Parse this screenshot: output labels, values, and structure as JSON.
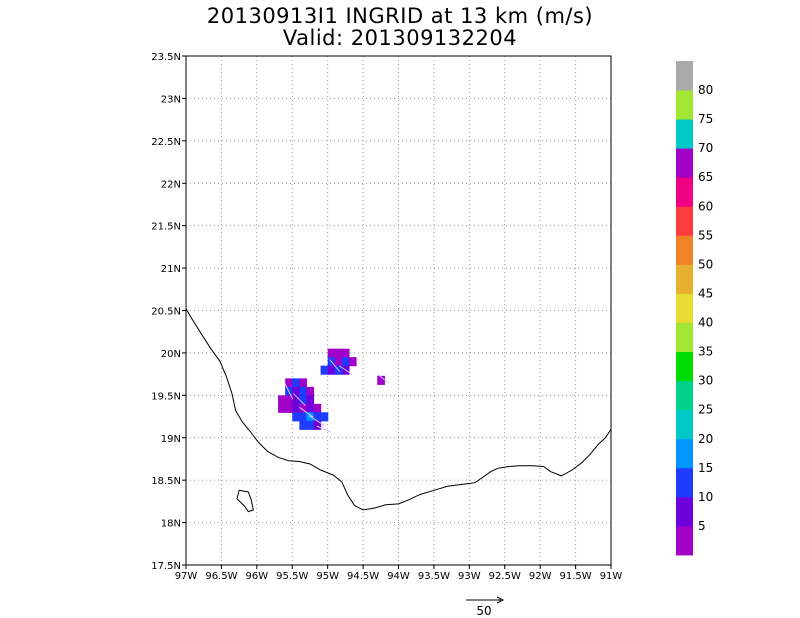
{
  "title": {
    "line1": "20130913I1 INGRID at 13 km (m/s)",
    "line2": "Valid: 201309132204"
  },
  "map": {
    "lon_range": [
      -97,
      -91
    ],
    "lat_range": [
      17.5,
      23.5
    ],
    "lon_ticks": [
      -97,
      -96.5,
      -96,
      -95.5,
      -95,
      -94.5,
      -94,
      -93.5,
      -93,
      -92.5,
      -92,
      -91.5,
      -91
    ],
    "lon_labels": [
      "97W",
      "96.5W",
      "96W",
      "95.5W",
      "95W",
      "94.5W",
      "94W",
      "93.5W",
      "93W",
      "92.5W",
      "92W",
      "91.5W",
      "91W"
    ],
    "lat_ticks": [
      17.5,
      18,
      18.5,
      19,
      19.5,
      20,
      20.5,
      21,
      21.5,
      22,
      22.5,
      23,
      23.5
    ],
    "lat_labels": [
      "17.5N",
      "18N",
      "18.5N",
      "19N",
      "19.5N",
      "20N",
      "20.5N",
      "21N",
      "21.5N",
      "22N",
      "22.5N",
      "23N",
      "23.5N"
    ],
    "grid": "dotted",
    "coastline": [
      [
        -97.0,
        20.52
      ],
      [
        -96.9,
        20.38
      ],
      [
        -96.78,
        20.22
      ],
      [
        -96.65,
        20.05
      ],
      [
        -96.52,
        19.9
      ],
      [
        -96.43,
        19.72
      ],
      [
        -96.35,
        19.52
      ],
      [
        -96.3,
        19.32
      ],
      [
        -96.2,
        19.18
      ],
      [
        -96.1,
        19.08
      ],
      [
        -95.98,
        18.95
      ],
      [
        -95.85,
        18.84
      ],
      [
        -95.7,
        18.77
      ],
      [
        -95.55,
        18.73
      ],
      [
        -95.4,
        18.72
      ],
      [
        -95.25,
        18.69
      ],
      [
        -95.1,
        18.62
      ],
      [
        -94.92,
        18.56
      ],
      [
        -94.8,
        18.48
      ],
      [
        -94.72,
        18.33
      ],
      [
        -94.62,
        18.2
      ],
      [
        -94.5,
        18.15
      ],
      [
        -94.35,
        18.17
      ],
      [
        -94.18,
        18.21
      ],
      [
        -94.0,
        18.22
      ],
      [
        -93.85,
        18.27
      ],
      [
        -93.7,
        18.33
      ],
      [
        -93.5,
        18.38
      ],
      [
        -93.3,
        18.43
      ],
      [
        -93.1,
        18.45
      ],
      [
        -92.92,
        18.47
      ],
      [
        -92.8,
        18.54
      ],
      [
        -92.7,
        18.6
      ],
      [
        -92.6,
        18.64
      ],
      [
        -92.45,
        18.66
      ],
      [
        -92.3,
        18.67
      ],
      [
        -92.1,
        18.67
      ],
      [
        -91.95,
        18.66
      ],
      [
        -91.85,
        18.6
      ],
      [
        -91.7,
        18.55
      ],
      [
        -91.55,
        18.62
      ],
      [
        -91.42,
        18.7
      ],
      [
        -91.3,
        18.8
      ],
      [
        -91.18,
        18.92
      ],
      [
        -91.08,
        19.0
      ],
      [
        -91.0,
        19.1
      ]
    ],
    "lake": [
      [
        -96.25,
        18.38
      ],
      [
        -96.12,
        18.36
      ],
      [
        -96.08,
        18.27
      ],
      [
        -96.05,
        18.15
      ],
      [
        -96.12,
        18.13
      ],
      [
        -96.18,
        18.2
      ],
      [
        -96.28,
        18.28
      ],
      [
        -96.25,
        18.38
      ]
    ],
    "wind_field": {
      "cells": [
        [
          -95.55,
          19.65,
          4
        ],
        [
          -95.45,
          19.65,
          10
        ],
        [
          -95.35,
          19.65,
          3
        ],
        [
          -95.55,
          19.55,
          12
        ],
        [
          -95.45,
          19.55,
          8
        ],
        [
          -95.35,
          19.55,
          11
        ],
        [
          -95.25,
          19.55,
          4
        ],
        [
          -95.65,
          19.45,
          3
        ],
        [
          -95.55,
          19.45,
          2
        ],
        [
          -95.45,
          19.45,
          6
        ],
        [
          -95.35,
          19.45,
          12
        ],
        [
          -95.25,
          19.45,
          9
        ],
        [
          -95.65,
          19.35,
          4
        ],
        [
          -95.55,
          19.35,
          3
        ],
        [
          -95.45,
          19.35,
          5
        ],
        [
          -95.35,
          19.35,
          2
        ],
        [
          -95.25,
          19.35,
          8
        ],
        [
          -95.15,
          19.35,
          4
        ],
        [
          -95.45,
          19.25,
          12
        ],
        [
          -95.35,
          19.25,
          10
        ],
        [
          -95.25,
          19.25,
          16
        ],
        [
          -95.15,
          19.25,
          13
        ],
        [
          -95.05,
          19.25,
          10
        ],
        [
          -95.35,
          19.15,
          11
        ],
        [
          -95.25,
          19.15,
          12
        ],
        [
          -95.15,
          19.15,
          9
        ],
        [
          -94.95,
          20.0,
          3
        ],
        [
          -94.85,
          20.0,
          2
        ],
        [
          -94.75,
          20.0,
          4
        ],
        [
          -94.95,
          19.9,
          10
        ],
        [
          -94.85,
          19.9,
          3
        ],
        [
          -94.75,
          19.9,
          11
        ],
        [
          -94.65,
          19.9,
          4
        ],
        [
          -95.05,
          19.8,
          12
        ],
        [
          -94.95,
          19.8,
          9
        ],
        [
          -94.85,
          19.8,
          11
        ],
        [
          -94.75,
          19.8,
          8
        ],
        [
          -94.25,
          19.68,
          3
        ]
      ],
      "arrows": [
        [
          -95.55,
          19.55,
          4,
          8
        ],
        [
          -95.4,
          19.45,
          6,
          6
        ],
        [
          -95.3,
          19.3,
          7,
          5
        ],
        [
          -95.15,
          19.2,
          8,
          5
        ],
        [
          -95.05,
          19.1,
          7,
          3
        ],
        [
          -94.9,
          19.85,
          5,
          6
        ],
        [
          -94.75,
          19.8,
          6,
          4
        ],
        [
          -94.22,
          19.7,
          5,
          4
        ]
      ]
    }
  },
  "colorbar": {
    "bins": [
      {
        "color": "#a000c8"
      },
      {
        "color": "#6e00dc"
      },
      {
        "color": "#1e3cff"
      },
      {
        "color": "#0096ff"
      },
      {
        "color": "#00c8c8"
      },
      {
        "color": "#00d28c"
      },
      {
        "color": "#00dc00"
      },
      {
        "color": "#a0e632"
      },
      {
        "color": "#e6dc32"
      },
      {
        "color": "#e6af2d"
      },
      {
        "color": "#f08228"
      },
      {
        "color": "#fa3c3c"
      },
      {
        "color": "#f00082"
      },
      {
        "color": "#a000c8"
      },
      {
        "color": "#00c8c8"
      },
      {
        "color": "#a0e632"
      },
      {
        "color": "#aaaaaa"
      }
    ],
    "labels": [
      "5",
      "10",
      "15",
      "20",
      "25",
      "30",
      "35",
      "40",
      "45",
      "50",
      "55",
      "60",
      "65",
      "70",
      "75",
      "80"
    ]
  },
  "scale_arrow": {
    "label": "50"
  }
}
